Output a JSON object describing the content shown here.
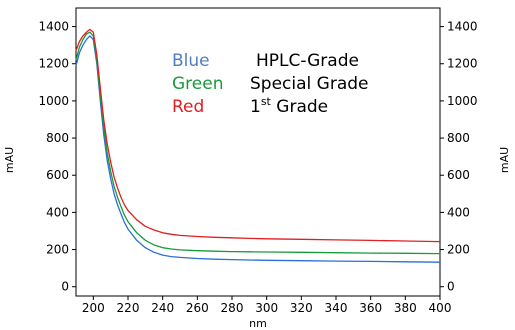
{
  "chart_data": {
    "type": "line",
    "xlabel": "nm",
    "ylabel_left": "mAU",
    "ylabel_right": "mAU",
    "xlim": [
      190,
      400
    ],
    "ylim": [
      -50,
      1500
    ],
    "x_ticks": [
      200,
      220,
      240,
      260,
      280,
      300,
      320,
      340,
      360,
      380,
      400
    ],
    "y_ticks": [
      0,
      200,
      400,
      600,
      800,
      1000,
      1200,
      1400
    ],
    "legend": [
      {
        "color_label": "Blue",
        "grade": "HPLC-Grade",
        "grade_sup": "",
        "grade_tail": ""
      },
      {
        "color_label": "Green",
        "grade": "Special Grade",
        "grade_sup": "",
        "grade_tail": ""
      },
      {
        "color_label": "Red",
        "grade": "1",
        "grade_sup": "st",
        "grade_tail": " Grade"
      }
    ],
    "series": [
      {
        "color": "#2a6fd6",
        "x": [
          190,
          192,
          194,
          196,
          198,
          200,
          202,
          204,
          206,
          208,
          210,
          212,
          214,
          216,
          218,
          220,
          225,
          230,
          235,
          240,
          245,
          250,
          260,
          270,
          280,
          290,
          300,
          320,
          340,
          360,
          380,
          400
        ],
        "y": [
          1190,
          1260,
          1300,
          1330,
          1350,
          1330,
          1200,
          1000,
          820,
          680,
          580,
          500,
          440,
          390,
          345,
          310,
          250,
          210,
          185,
          170,
          162,
          158,
          152,
          148,
          146,
          144,
          142,
          140,
          138,
          136,
          134,
          132
        ]
      },
      {
        "color": "#1a9a3c",
        "x": [
          190,
          192,
          194,
          196,
          198,
          200,
          202,
          204,
          206,
          208,
          210,
          212,
          214,
          216,
          218,
          220,
          225,
          230,
          235,
          240,
          245,
          250,
          260,
          270,
          280,
          290,
          300,
          320,
          340,
          360,
          380,
          400
        ],
        "y": [
          1220,
          1290,
          1330,
          1360,
          1370,
          1350,
          1220,
          1030,
          860,
          720,
          620,
          540,
          480,
          430,
          385,
          350,
          290,
          250,
          225,
          210,
          203,
          198,
          194,
          191,
          189,
          188,
          187,
          185,
          183,
          181,
          180,
          178
        ]
      },
      {
        "color": "#e02020",
        "x": [
          190,
          192,
          194,
          196,
          198,
          200,
          202,
          204,
          206,
          208,
          210,
          212,
          214,
          216,
          218,
          220,
          225,
          230,
          235,
          240,
          245,
          250,
          260,
          270,
          280,
          290,
          300,
          320,
          340,
          360,
          380,
          400
        ],
        "y": [
          1270,
          1320,
          1350,
          1370,
          1385,
          1370,
          1250,
          1070,
          900,
          770,
          670,
          590,
          530,
          480,
          440,
          410,
          360,
          325,
          305,
          290,
          282,
          276,
          270,
          266,
          263,
          260,
          258,
          255,
          252,
          249,
          246,
          243
        ]
      }
    ]
  }
}
